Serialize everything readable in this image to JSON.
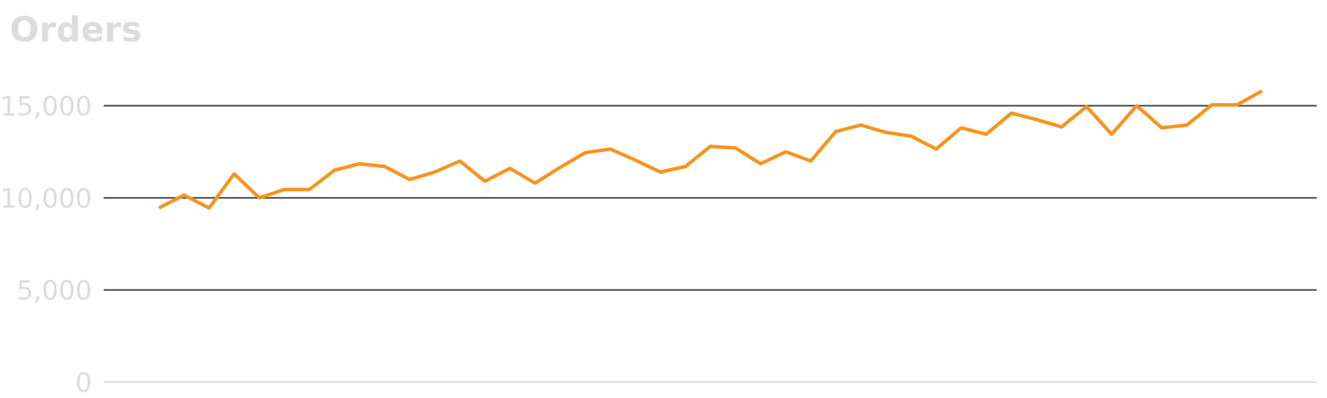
{
  "chart_data": {
    "type": "line",
    "title": "Orders",
    "xlabel": "",
    "ylabel": "",
    "ylim": [
      0,
      15000
    ],
    "y_ticks": [
      {
        "value": 0,
        "label": "0"
      },
      {
        "value": 5000,
        "label": "5,000"
      },
      {
        "value": 10000,
        "label": "10,000"
      },
      {
        "value": 15000,
        "label": "15,000"
      }
    ],
    "grid": true,
    "legend": "none",
    "series": [
      {
        "color": "#f7941d",
        "values": [
          9450,
          10150,
          9450,
          11300,
          10000,
          10450,
          10450,
          11500,
          11850,
          11700,
          11000,
          11400,
          12000,
          10900,
          11600,
          10800,
          11650,
          12450,
          12650,
          12050,
          11400,
          11700,
          12800,
          12700,
          11850,
          12500,
          12000,
          13600,
          13950,
          13550,
          13350,
          12650,
          13800,
          13450,
          14600,
          14250,
          13850,
          14950,
          13450,
          15000,
          13800,
          13950,
          15050,
          15050,
          15800
        ]
      }
    ]
  }
}
